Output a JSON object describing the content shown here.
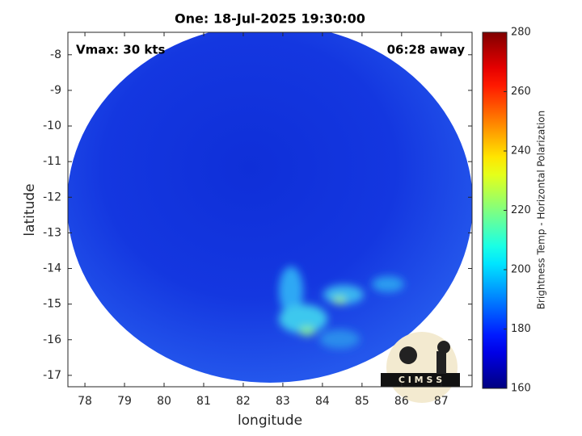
{
  "chart_data": {
    "type": "map",
    "title": "One: 18-Jul-2025 19:30:00",
    "annotations": [
      "Vmax: 30 kts",
      "06:28 away"
    ],
    "x_label": "longitude",
    "y_label": "latitude",
    "xlim": [
      77.57,
      87.78
    ],
    "ylim": [
      -17.32,
      -7.37
    ],
    "xticks": [
      78,
      79,
      80,
      81,
      82,
      83,
      84,
      85,
      86,
      87
    ],
    "yticks": [
      -8,
      -9,
      -10,
      -11,
      -12,
      -13,
      -14,
      -15,
      -16,
      -17
    ],
    "colorbar": {
      "label": "Brightness Temp - Horizontal Polarization",
      "colormap": "jet",
      "clim": [
        160,
        280
      ],
      "ticks": [
        160,
        180,
        200,
        220,
        240,
        260,
        280
      ]
    },
    "logo": "C I M S S"
  }
}
